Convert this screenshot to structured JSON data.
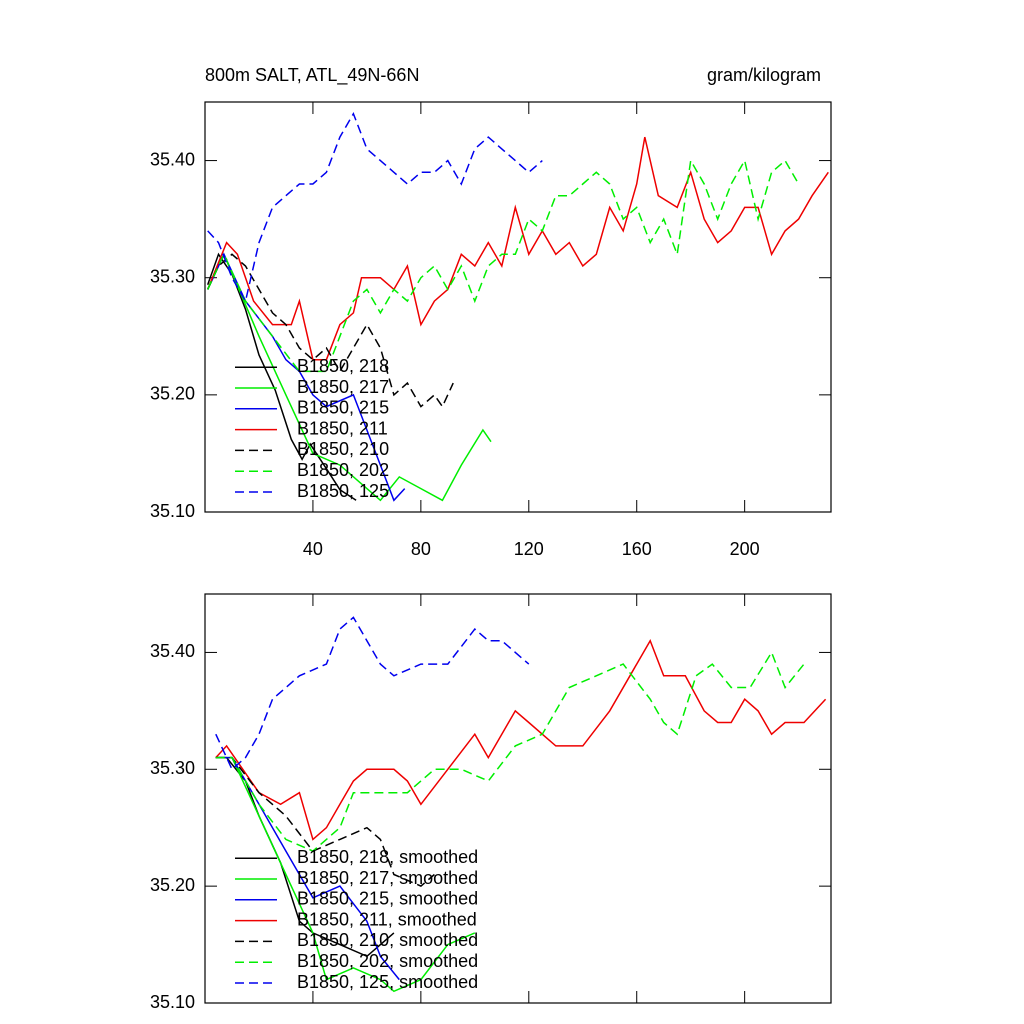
{
  "chart_data": [
    {
      "type": "line",
      "title": "800m SALT, ATL_49N-66N",
      "units": "gram/kilogram",
      "xlim": [
        0,
        232
      ],
      "ylim": [
        35.1,
        35.45
      ],
      "xticks": [
        40,
        80,
        120,
        160,
        200
      ],
      "yticks": [
        {
          "value": 35.1,
          "label": "35.10"
        },
        {
          "value": 35.2,
          "label": "35.20"
        },
        {
          "value": 35.3,
          "label": "35.30"
        },
        {
          "value": 35.4,
          "label": "35.40"
        }
      ],
      "legend": "lower left",
      "series": [
        {
          "name": "B1850, 218",
          "color": "#000000",
          "dashed": false,
          "x": [
            1,
            5,
            10,
            15,
            20,
            26,
            32,
            36,
            39,
            45,
            50,
            56
          ],
          "values": [
            35.294,
            35.32,
            35.303,
            35.273,
            35.234,
            35.204,
            35.162,
            35.145,
            35.158,
            35.137,
            35.119,
            35.11
          ]
        },
        {
          "name": "B1850, 217",
          "color": "#00ee00",
          "dashed": false,
          "x": [
            1,
            7,
            20,
            30,
            40,
            50,
            60,
            65,
            72,
            80,
            88,
            95,
            103,
            106
          ],
          "values": [
            35.29,
            35.32,
            35.25,
            35.2,
            35.15,
            35.14,
            35.12,
            35.11,
            35.13,
            35.12,
            35.11,
            35.14,
            35.17,
            35.16
          ]
        },
        {
          "name": "B1850, 215",
          "color": "#0000ee",
          "dashed": false,
          "x": [
            1,
            7,
            15,
            25,
            30,
            35,
            40,
            45,
            55,
            60,
            65,
            70,
            74
          ],
          "values": [
            35.29,
            35.32,
            35.28,
            35.25,
            35.23,
            35.22,
            35.2,
            35.19,
            35.2,
            35.17,
            35.14,
            35.11,
            35.12
          ]
        },
        {
          "name": "B1850, 211",
          "color": "#ee0000",
          "dashed": false,
          "x": [
            1,
            8,
            12,
            18,
            25,
            32,
            35,
            40,
            45,
            50,
            55,
            58,
            65,
            70,
            75,
            80,
            85,
            90,
            95,
            100,
            105,
            110,
            115,
            120,
            125,
            130,
            135,
            140,
            145,
            150,
            155,
            160,
            163,
            168,
            175,
            180,
            185,
            190,
            195,
            200,
            205,
            210,
            215,
            220,
            225,
            231
          ],
          "values": [
            35.29,
            35.33,
            35.32,
            35.28,
            35.26,
            35.26,
            35.28,
            35.23,
            35.23,
            35.26,
            35.27,
            35.3,
            35.3,
            35.29,
            35.31,
            35.26,
            35.28,
            35.29,
            35.32,
            35.31,
            35.33,
            35.31,
            35.36,
            35.32,
            35.34,
            35.32,
            35.33,
            35.31,
            35.32,
            35.36,
            35.34,
            35.38,
            35.42,
            35.37,
            35.36,
            35.39,
            35.35,
            35.33,
            35.34,
            35.36,
            35.36,
            35.32,
            35.34,
            35.35,
            35.37,
            35.39
          ]
        },
        {
          "name": "B1850, 210",
          "color": "#000000",
          "dashed": true,
          "x": [
            1,
            5,
            10,
            15,
            20,
            25,
            30,
            35,
            40,
            45,
            50,
            55,
            60,
            65,
            70,
            75,
            80,
            85,
            88,
            92
          ],
          "values": [
            35.29,
            35.31,
            35.32,
            35.31,
            35.29,
            35.27,
            35.26,
            35.24,
            35.23,
            35.24,
            35.22,
            35.24,
            35.26,
            35.24,
            35.2,
            35.21,
            35.19,
            35.2,
            35.19,
            35.21
          ]
        },
        {
          "name": "B1850, 202",
          "color": "#00ee00",
          "dashed": true,
          "x": [
            1,
            7,
            15,
            25,
            35,
            45,
            50,
            55,
            60,
            65,
            70,
            75,
            80,
            85,
            90,
            95,
            100,
            105,
            110,
            115,
            120,
            125,
            130,
            135,
            140,
            145,
            150,
            155,
            160,
            165,
            170,
            175,
            180,
            185,
            190,
            195,
            200,
            205,
            210,
            215,
            220
          ],
          "values": [
            35.29,
            35.32,
            35.28,
            35.25,
            35.22,
            35.22,
            35.25,
            35.28,
            35.29,
            35.27,
            35.29,
            35.28,
            35.3,
            35.31,
            35.29,
            35.31,
            35.28,
            35.31,
            35.32,
            35.32,
            35.35,
            35.34,
            35.37,
            35.37,
            35.38,
            35.39,
            35.38,
            35.35,
            35.36,
            35.33,
            35.35,
            35.32,
            35.4,
            35.38,
            35.35,
            35.38,
            35.4,
            35.35,
            35.39,
            35.4,
            35.38
          ]
        },
        {
          "name": "B1850, 125",
          "color": "#0000ee",
          "dashed": true,
          "x": [
            1,
            5,
            10,
            15,
            20,
            25,
            30,
            35,
            40,
            45,
            50,
            55,
            60,
            65,
            70,
            75,
            80,
            85,
            90,
            95,
            100,
            105,
            110,
            115,
            120,
            125
          ],
          "values": [
            35.34,
            35.33,
            35.3,
            35.28,
            35.33,
            35.36,
            35.37,
            35.38,
            35.38,
            35.39,
            35.42,
            35.44,
            35.41,
            35.4,
            35.39,
            35.38,
            35.39,
            35.39,
            35.4,
            35.38,
            35.41,
            35.42,
            35.41,
            35.4,
            35.39,
            35.4
          ]
        }
      ]
    },
    {
      "type": "line",
      "xlim": [
        0,
        232
      ],
      "ylim": [
        35.1,
        35.45
      ],
      "xticks": [
        40,
        80,
        120,
        160,
        200
      ],
      "yticks": [
        {
          "value": 35.1,
          "label": "35.10"
        },
        {
          "value": 35.2,
          "label": "35.20"
        },
        {
          "value": 35.3,
          "label": "35.30"
        },
        {
          "value": 35.4,
          "label": "35.40"
        }
      ],
      "legend": "lower left",
      "series": [
        {
          "name": "B1850, 218, smoothed",
          "color": "#000000",
          "dashed": false,
          "x": [
            4,
            8,
            15,
            20,
            28,
            35,
            40,
            50,
            60,
            70
          ],
          "values": [
            35.31,
            35.31,
            35.29,
            35.26,
            35.22,
            35.17,
            35.16,
            35.15,
            35.14,
            35.16
          ]
        },
        {
          "name": "B1850, 217, smoothed",
          "color": "#00ee00",
          "dashed": false,
          "x": [
            4,
            10,
            20,
            30,
            40,
            45,
            55,
            65,
            70,
            80,
            90,
            100
          ],
          "values": [
            35.31,
            35.31,
            35.26,
            35.21,
            35.16,
            35.12,
            35.13,
            35.12,
            35.11,
            35.12,
            35.15,
            35.16
          ]
        },
        {
          "name": "B1850, 215, smoothed",
          "color": "#0000ee",
          "dashed": false,
          "x": [
            4,
            10,
            20,
            30,
            35,
            40,
            50,
            60,
            65,
            72
          ],
          "values": [
            35.31,
            35.31,
            35.27,
            35.23,
            35.21,
            35.19,
            35.2,
            35.17,
            35.14,
            35.12
          ]
        },
        {
          "name": "B1850, 211, smoothed",
          "color": "#ee0000",
          "dashed": false,
          "x": [
            4,
            8,
            14,
            20,
            28,
            35,
            40,
            45,
            50,
            55,
            60,
            70,
            75,
            80,
            90,
            100,
            105,
            115,
            120,
            130,
            140,
            150,
            160,
            165,
            170,
            178,
            185,
            190,
            195,
            200,
            205,
            210,
            215,
            222,
            230
          ],
          "values": [
            35.31,
            35.32,
            35.3,
            35.28,
            35.27,
            35.28,
            35.24,
            35.25,
            35.27,
            35.29,
            35.3,
            35.3,
            35.29,
            35.27,
            35.3,
            35.33,
            35.31,
            35.35,
            35.34,
            35.32,
            35.32,
            35.35,
            35.39,
            35.41,
            35.38,
            35.38,
            35.35,
            35.34,
            35.34,
            35.36,
            35.35,
            35.33,
            35.34,
            35.34,
            35.36
          ]
        },
        {
          "name": "B1850, 210, smoothed",
          "color": "#000000",
          "dashed": true,
          "x": [
            4,
            10,
            20,
            30,
            40,
            50,
            60,
            65,
            70,
            80,
            85
          ],
          "values": [
            35.31,
            35.31,
            35.28,
            35.26,
            35.23,
            35.24,
            35.25,
            35.24,
            35.21,
            35.2,
            35.21
          ]
        },
        {
          "name": "B1850, 202, smoothed",
          "color": "#00ee00",
          "dashed": true,
          "x": [
            4,
            10,
            20,
            30,
            40,
            50,
            55,
            65,
            75,
            85,
            95,
            105,
            115,
            125,
            135,
            145,
            155,
            165,
            170,
            175,
            182,
            188,
            195,
            202,
            210,
            215,
            222
          ],
          "values": [
            35.31,
            35.31,
            35.27,
            35.24,
            35.23,
            35.25,
            35.28,
            35.28,
            35.28,
            35.3,
            35.3,
            35.29,
            35.32,
            35.33,
            35.37,
            35.38,
            35.39,
            35.36,
            35.34,
            35.33,
            35.38,
            35.39,
            35.37,
            35.37,
            35.4,
            35.37,
            35.39
          ]
        },
        {
          "name": "B1850, 125, smoothed",
          "color": "#0000ee",
          "dashed": true,
          "x": [
            4,
            10,
            15,
            20,
            25,
            35,
            45,
            50,
            55,
            60,
            65,
            70,
            80,
            90,
            100,
            105,
            110,
            115,
            120
          ],
          "values": [
            35.33,
            35.3,
            35.31,
            35.33,
            35.36,
            35.38,
            35.39,
            35.42,
            35.43,
            35.41,
            35.39,
            35.38,
            35.39,
            35.39,
            35.42,
            35.41,
            35.41,
            35.4,
            35.39
          ]
        }
      ]
    }
  ]
}
